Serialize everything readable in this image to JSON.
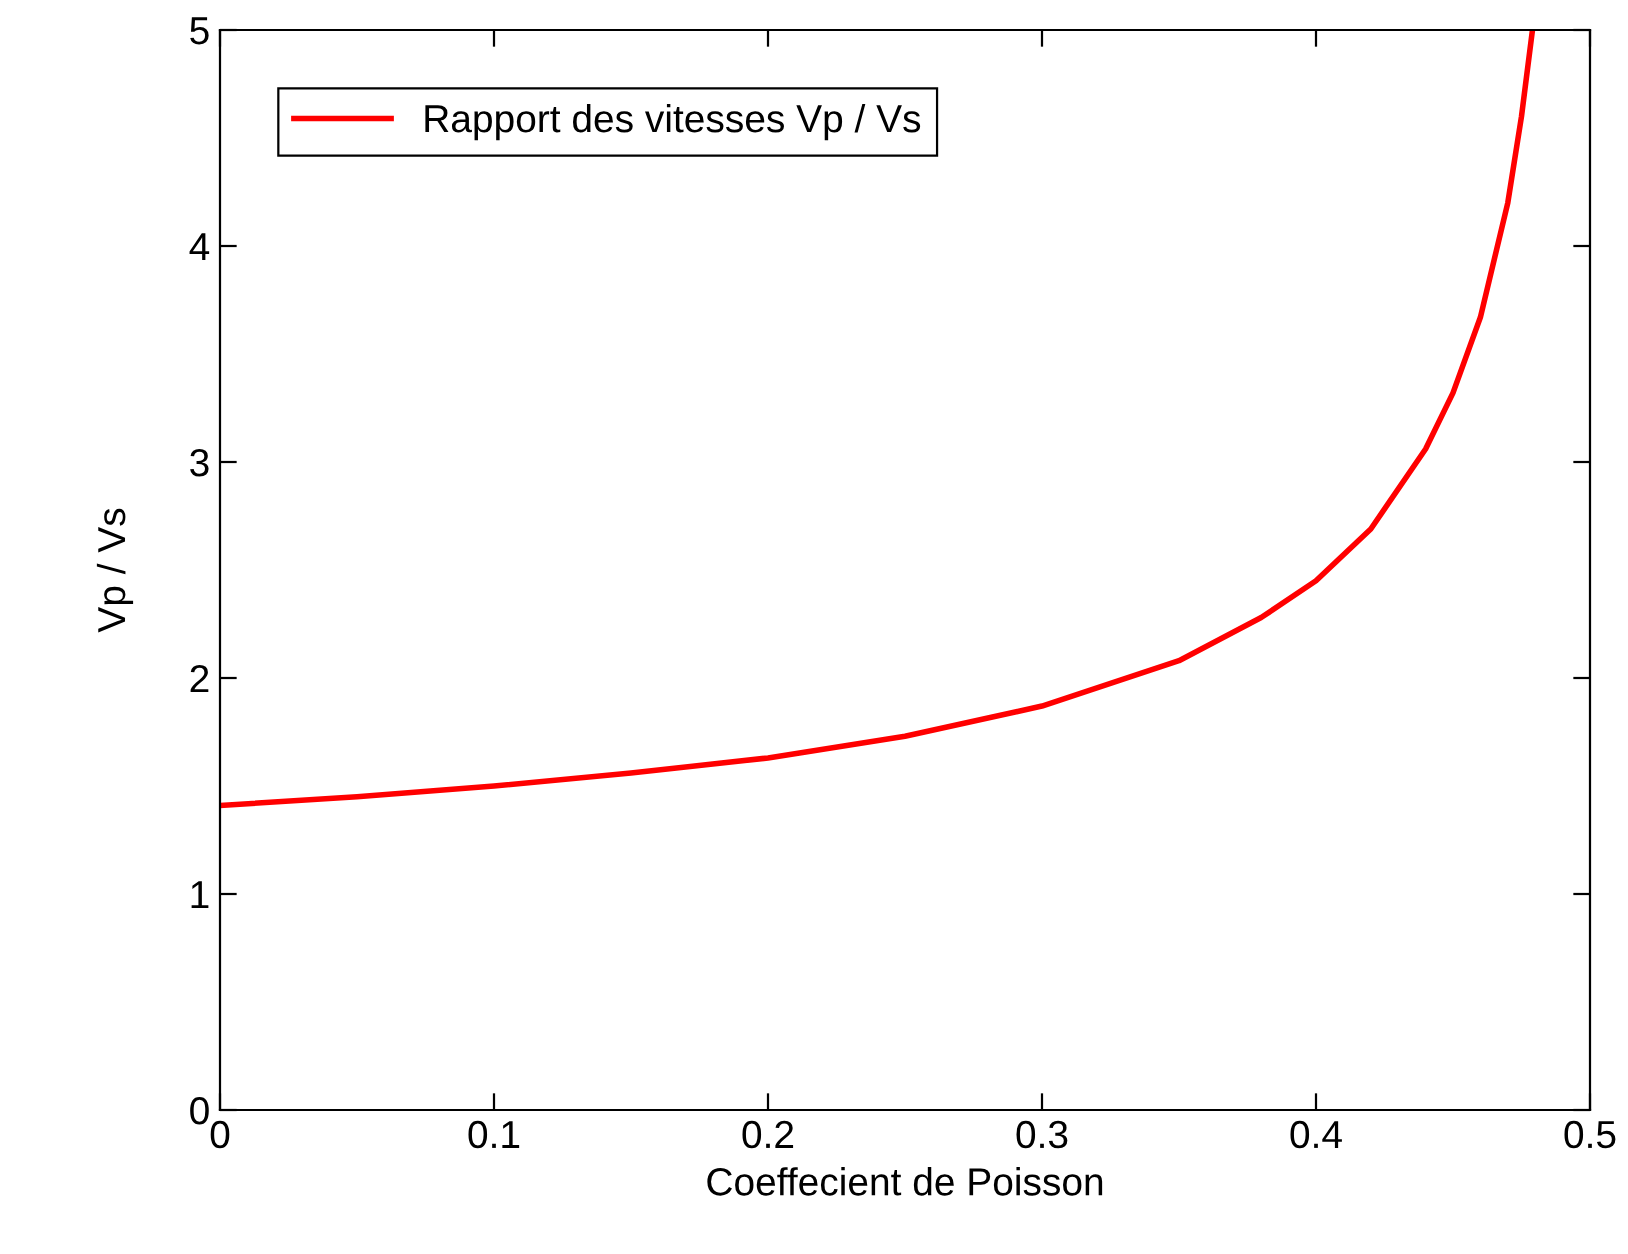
{
  "chart_data": {
    "type": "line",
    "xlabel": "Coeffecient de Poisson",
    "ylabel": "Vp / Vs",
    "x": [
      0,
      0.05,
      0.1,
      0.15,
      0.2,
      0.25,
      0.3,
      0.35,
      0.38,
      0.4,
      0.42,
      0.44,
      0.45,
      0.46,
      0.47,
      0.475,
      0.479
    ],
    "series": [
      {
        "name": "Rapport des vitesses Vp / Vs",
        "color": "#ff0000",
        "values": [
          1.41,
          1.45,
          1.5,
          1.56,
          1.63,
          1.73,
          1.87,
          2.08,
          2.28,
          2.45,
          2.69,
          3.06,
          3.32,
          3.67,
          4.2,
          4.6,
          5.0
        ]
      }
    ],
    "xlim": [
      0,
      0.5
    ],
    "xticks": [
      {
        "value": 0,
        "label": "0"
      },
      0.1,
      0.2,
      0.3,
      0.4,
      0.5
    ],
    "ylim": [
      0,
      5
    ],
    "yticks": [
      0,
      1,
      2,
      3,
      4,
      5
    ],
    "legend": "top left",
    "grid": false,
    "marker": "none",
    "line_style": "solid"
  }
}
